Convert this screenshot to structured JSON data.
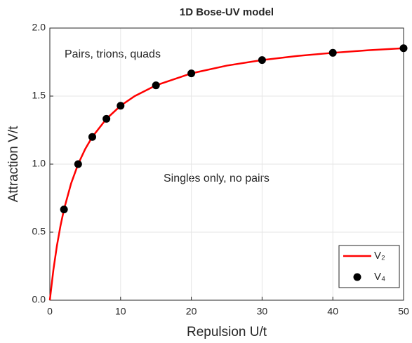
{
  "chart_data": {
    "type": "line",
    "title": "1D Bose-UV model",
    "xlabel": "Repulsion U/t",
    "ylabel": "Attraction V/t",
    "annotations": [
      "Pairs, trions, quads",
      "Singles only, no pairs"
    ],
    "xlim": [
      0,
      50
    ],
    "ylim": [
      0,
      2
    ],
    "xticks": [
      0,
      10,
      20,
      30,
      40,
      50
    ],
    "yticks": [
      {
        "value": 0,
        "label": "0.0"
      },
      {
        "value": 0.5,
        "label": "0.5"
      },
      {
        "value": 1,
        "label": "1.0"
      },
      {
        "value": 1.5,
        "label": "1.5"
      },
      {
        "value": 2,
        "label": "2.0"
      }
    ],
    "grid": true,
    "legend": "lower right",
    "series": [
      {
        "name": "V₂",
        "color": "#ff0000",
        "style": "line",
        "x": [
          0,
          0.5,
          1,
          1.5,
          2,
          3,
          4,
          5,
          6,
          8,
          10,
          12,
          15,
          20,
          25,
          30,
          35,
          40,
          45,
          50
        ],
        "values": [
          0,
          0.222,
          0.4,
          0.545,
          0.667,
          0.857,
          1,
          1.111,
          1.2,
          1.333,
          1.429,
          1.5,
          1.579,
          1.667,
          1.724,
          1.765,
          1.795,
          1.818,
          1.837,
          1.852
        ]
      },
      {
        "name": "V₄",
        "color": "#000000",
        "style": "markers",
        "x": [
          2,
          4,
          6,
          8,
          10,
          15,
          20,
          30,
          40,
          50
        ],
        "values": [
          0.667,
          1,
          1.2,
          1.333,
          1.429,
          1.579,
          1.667,
          1.765,
          1.818,
          1.852
        ]
      }
    ]
  }
}
